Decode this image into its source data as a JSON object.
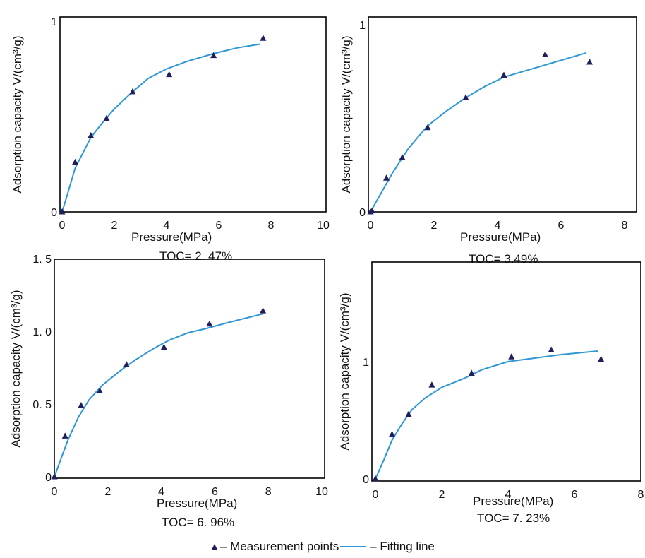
{
  "legend": {
    "measurement_label": "– Measurement points",
    "fitting_label": "– Fitting line",
    "colors": {
      "marker": "#1e1f5c",
      "line": "#2f97d4"
    }
  },
  "chart_data": [
    {
      "type": "scatter",
      "xlabel": "Pressure(MPa)",
      "ylabel": "Adsorption capacity  V/(cm³/g)",
      "caption": "TOC= 2. 47%",
      "xlim": [
        0,
        10
      ],
      "ylim": [
        0,
        1
      ],
      "xticks": [
        "0",
        "2",
        "4",
        "6",
        "8",
        "10"
      ],
      "yticks": [
        "0",
        "1"
      ],
      "series": [
        {
          "x": [
            0.0,
            0.5,
            1.1,
            1.7,
            2.7,
            4.1,
            5.8,
            7.7
          ],
          "y": [
            0.0,
            0.26,
            0.4,
            0.49,
            0.63,
            0.72,
            0.82,
            0.91
          ]
        },
        {
          "x": [
            0.0,
            0.2,
            0.5,
            0.8,
            1.1,
            1.5,
            2.0,
            2.7,
            3.3,
            4.0,
            4.8,
            5.8,
            6.7,
            7.6
          ],
          "y": [
            0.0,
            0.09,
            0.23,
            0.31,
            0.39,
            0.46,
            0.54,
            0.63,
            0.7,
            0.75,
            0.79,
            0.83,
            0.86,
            0.88
          ]
        }
      ]
    },
    {
      "type": "scatter",
      "xlabel": "Pressure(MPa)",
      "ylabel": "Adsorption capacity  V/(cm³/g)",
      "caption": "TOC= 3.49%",
      "xlim": [
        0,
        8
      ],
      "ylim": [
        0,
        1
      ],
      "xticks": [
        "0",
        "2",
        "4",
        "6",
        "8"
      ],
      "yticks": [
        "0",
        "1"
      ],
      "series": [
        {
          "x": [
            0.0,
            0.05,
            0.5,
            1.0,
            1.8,
            3.0,
            4.2,
            5.5,
            6.9
          ],
          "y": [
            0.0,
            0.005,
            0.18,
            0.29,
            0.45,
            0.61,
            0.73,
            0.84,
            0.8
          ]
        },
        {
          "x": [
            0.0,
            0.3,
            0.7,
            1.2,
            1.8,
            2.4,
            3.0,
            3.6,
            4.2,
            5.0,
            5.8,
            6.8
          ],
          "y": [
            0.0,
            0.09,
            0.21,
            0.34,
            0.46,
            0.54,
            0.61,
            0.67,
            0.72,
            0.76,
            0.8,
            0.85
          ]
        }
      ]
    },
    {
      "type": "scatter",
      "xlabel": "Pressure(MPa)",
      "ylabel": "Adsorption capacity  V/(cm³/g)",
      "caption": "TOC= 6. 96%",
      "xlim": [
        0,
        10
      ],
      "ylim": [
        0,
        1.5
      ],
      "xticks": [
        "0",
        "2",
        "4",
        "6",
        "8",
        "10"
      ],
      "yticks": [
        "0",
        "0. 5",
        "1. 0",
        "1. 5"
      ],
      "series": [
        {
          "x": [
            0.0,
            0.4,
            1.0,
            1.7,
            2.7,
            4.1,
            5.8,
            7.8
          ],
          "y": [
            0.0,
            0.28,
            0.49,
            0.59,
            0.77,
            0.89,
            1.05,
            1.14
          ]
        },
        {
          "x": [
            0.0,
            0.2,
            0.5,
            0.9,
            1.3,
            1.8,
            2.4,
            3.0,
            3.7,
            4.3,
            5.0,
            5.7,
            6.5,
            7.8
          ],
          "y": [
            0.0,
            0.1,
            0.25,
            0.41,
            0.53,
            0.63,
            0.72,
            0.8,
            0.88,
            0.94,
            0.99,
            1.02,
            1.06,
            1.12
          ]
        }
      ]
    },
    {
      "type": "scatter",
      "xlabel": "Pressure(MPa)",
      "ylabel": "Adsorption capacity  V/(cm³/g)",
      "caption": "TOC= 7. 23%",
      "xlim": [
        0,
        8
      ],
      "ylim": [
        0,
        1.65
      ],
      "xticks": [
        "0",
        "2",
        "4",
        "6",
        "8"
      ],
      "yticks": [
        "0",
        "1"
      ],
      "series": [
        {
          "x": [
            0.0,
            0.5,
            1.0,
            1.7,
            2.9,
            4.1,
            5.3,
            6.8
          ],
          "y": [
            0.0,
            0.38,
            0.55,
            0.8,
            0.9,
            1.04,
            1.1,
            1.02
          ]
        },
        {
          "x": [
            0.0,
            0.25,
            0.5,
            0.8,
            1.1,
            1.5,
            2.0,
            2.7,
            3.2,
            4.0,
            4.8,
            5.6,
            6.7
          ],
          "y": [
            0.0,
            0.16,
            0.33,
            0.47,
            0.59,
            0.69,
            0.78,
            0.86,
            0.93,
            1.0,
            1.03,
            1.06,
            1.09
          ]
        }
      ]
    }
  ]
}
